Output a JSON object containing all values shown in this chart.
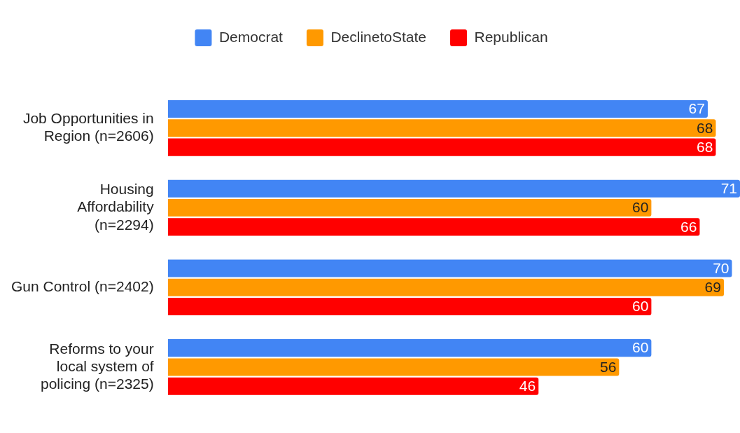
{
  "chart_data": {
    "type": "bar",
    "orientation": "horizontal",
    "categories": [
      "Job Opportunities in Region (n=2606)",
      "Housing Affordability (n=2294)",
      "Gun Control (n=2402)",
      "Reforms to your local system of policing (n=2325)"
    ],
    "series": [
      {
        "name": "Democrat",
        "color": "#4285f4",
        "values": [
          67,
          71,
          70,
          60
        ]
      },
      {
        "name": "DeclinetoState",
        "color": "#ff9900",
        "values": [
          68,
          60,
          69,
          56
        ]
      },
      {
        "name": "Republican",
        "color": "#ff0000",
        "values": [
          68,
          66,
          60,
          46
        ]
      }
    ],
    "data_labels": true,
    "legend": "top",
    "grid": false
  }
}
